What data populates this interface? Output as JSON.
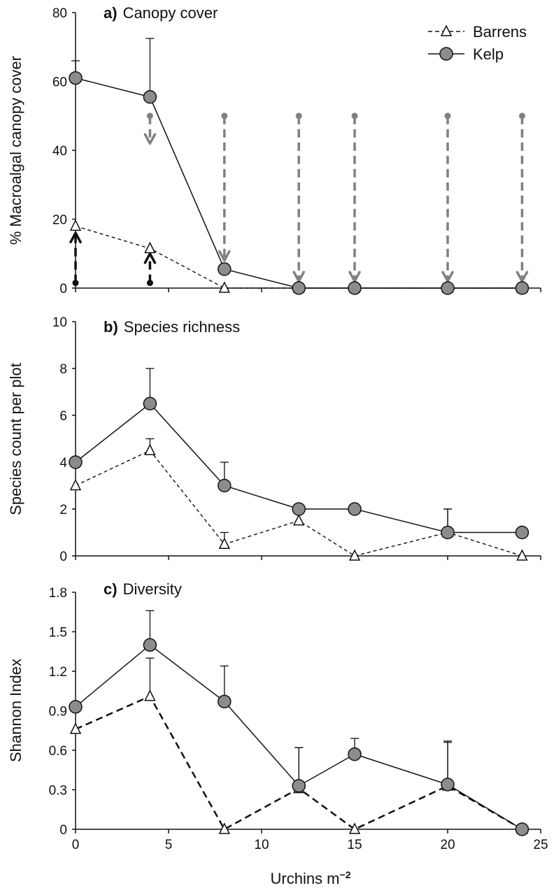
{
  "chart_data": [
    {
      "id": "a",
      "type": "line",
      "title_letter": "a)",
      "title_text": "Canopy cover",
      "ylabel": "% Macroalgal canopy cover",
      "xlim": [
        0,
        25
      ],
      "ylim": [
        0,
        80
      ],
      "yticks": [
        0,
        20,
        40,
        60,
        80
      ],
      "grid": false,
      "legend_position": "top-right",
      "series": [
        {
          "name": "Barrens",
          "style": "dashed",
          "marker": "triangle",
          "x": [
            0,
            4,
            8,
            12,
            15,
            20,
            24
          ],
          "y": [
            18,
            11.5,
            0,
            0,
            0,
            0,
            0
          ],
          "err": [
            0,
            0,
            0,
            0,
            0,
            0,
            0
          ]
        },
        {
          "name": "Kelp",
          "style": "solid",
          "marker": "circle",
          "x": [
            0,
            4,
            8,
            12,
            15,
            20,
            24
          ],
          "y": [
            61,
            55.5,
            5.5,
            0,
            0,
            0,
            0
          ],
          "err": [
            5,
            17,
            1.5,
            0,
            0,
            0,
            0
          ]
        }
      ],
      "arrows": [
        {
          "x": 0,
          "from": 1.5,
          "to": 16,
          "color": "#111111"
        },
        {
          "x": 4,
          "from": 1.5,
          "to": 10,
          "color": "#111111"
        },
        {
          "x": 4,
          "from": 50,
          "to": 42,
          "color": "#808080"
        },
        {
          "x": 8,
          "from": 50,
          "to": 8,
          "color": "#808080"
        },
        {
          "x": 12,
          "from": 50,
          "to": 2,
          "color": "#808080"
        },
        {
          "x": 15,
          "from": 50,
          "to": 2,
          "color": "#808080"
        },
        {
          "x": 20,
          "from": 50,
          "to": 2,
          "color": "#808080"
        },
        {
          "x": 24,
          "from": 50,
          "to": 2,
          "color": "#808080"
        }
      ]
    },
    {
      "id": "b",
      "type": "line",
      "title_letter": "b)",
      "title_text": "Species richness",
      "ylabel": "Species count per plot",
      "xlim": [
        0,
        25
      ],
      "ylim": [
        0,
        10
      ],
      "yticks": [
        0,
        2,
        4,
        6,
        8,
        10
      ],
      "grid": false,
      "series": [
        {
          "name": "Barrens",
          "style": "dashed",
          "marker": "triangle",
          "x": [
            0,
            4,
            8,
            12,
            15,
            20,
            24
          ],
          "y": [
            3,
            4.5,
            0.5,
            1.5,
            0,
            1,
            0
          ],
          "err": [
            0,
            0.5,
            0.5,
            0.5,
            0,
            1,
            0
          ]
        },
        {
          "name": "Kelp",
          "style": "solid",
          "marker": "circle",
          "x": [
            0,
            4,
            8,
            12,
            15,
            20,
            24
          ],
          "y": [
            4,
            6.5,
            3,
            2,
            2,
            1,
            1
          ],
          "err": [
            0,
            1.5,
            1,
            0,
            0,
            1,
            0
          ]
        }
      ]
    },
    {
      "id": "c",
      "type": "line",
      "title_letter": "c)",
      "title_text": "Diversity",
      "ylabel": "Shannon Index",
      "xlabel": "Urchins m",
      "xlabel_sup": "−2",
      "xlim": [
        0,
        25
      ],
      "xticks": [
        0,
        5,
        10,
        15,
        20,
        25
      ],
      "ylim": [
        0,
        1.8
      ],
      "yticks": [
        "0",
        "0.3",
        "0.6",
        "0.9",
        "1.2",
        "1.5",
        "1.8"
      ],
      "grid": false,
      "series": [
        {
          "name": "Barrens",
          "style": "dashed-bold",
          "marker": "triangle",
          "x": [
            0,
            4,
            8,
            12,
            15,
            20,
            24
          ],
          "y": [
            0.76,
            1.01,
            0,
            0.31,
            0,
            0.33,
            0
          ],
          "err": [
            0,
            0.29,
            0,
            0.31,
            0,
            0.33,
            0
          ]
        },
        {
          "name": "Kelp",
          "style": "solid",
          "marker": "circle",
          "x": [
            0,
            4,
            8,
            12,
            15,
            20,
            24
          ],
          "y": [
            0.93,
            1.4,
            0.97,
            0.33,
            0.57,
            0.34,
            0
          ],
          "err": [
            0,
            0.26,
            0.27,
            0.29,
            0.12,
            0.33,
            0
          ]
        }
      ]
    }
  ]
}
